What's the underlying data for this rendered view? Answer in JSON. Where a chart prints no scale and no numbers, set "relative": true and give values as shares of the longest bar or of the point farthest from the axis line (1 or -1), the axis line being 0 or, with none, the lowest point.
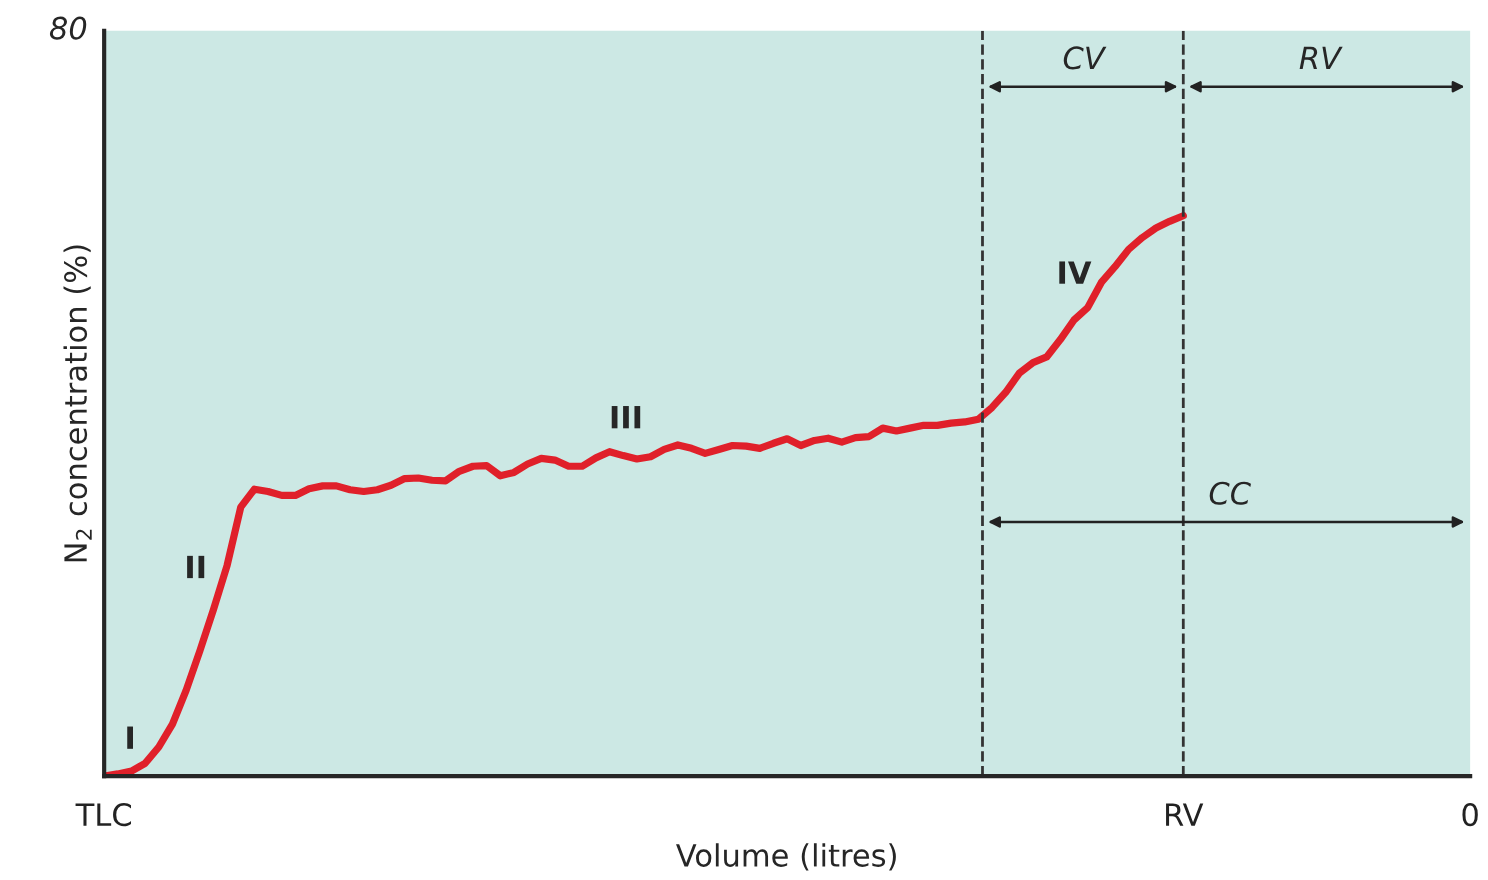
{
  "chart_data": {
    "type": "line",
    "relative": true,
    "xlabel": "Volume (litres)",
    "ylabel": "N$_{2}$ concentration (%)",
    "categories": [
      "TLC",
      null,
      null,
      null,
      null,
      null,
      null,
      null,
      null,
      null,
      null,
      null,
      null,
      null,
      null,
      null,
      null,
      null,
      null,
      null,
      null,
      null,
      null,
      null,
      null,
      null,
      null,
      null,
      null,
      null,
      null,
      null,
      null,
      null,
      null,
      null,
      null,
      null,
      null,
      null,
      null,
      null,
      null,
      null,
      null,
      null,
      null,
      null,
      null,
      null,
      null,
      null,
      null,
      null,
      null,
      null,
      null,
      null,
      null,
      null,
      null,
      null,
      null,
      null,
      null,
      null,
      null,
      null,
      null,
      null,
      null,
      null,
      null,
      null,
      null,
      null,
      null,
      null,
      null,
      "RV",
      null,
      null,
      null,
      null,
      null,
      null,
      null,
      null,
      null,
      null,
      null,
      null,
      null,
      null,
      null,
      null,
      null,
      null,
      null,
      null,
      "0"
    ],
    "grid": false,
    "legend": false,
    "marker": "none",
    "line_style": "solid",
    "series": [
      {
        "color": "#e0202a",
        "values": [
          0,
          0.004,
          0.009,
          0.023,
          0.052,
          0.093,
          0.153,
          0.223,
          0.297,
          0.376,
          0.48,
          0.512,
          0.508,
          0.501,
          0.501,
          0.513,
          0.518,
          0.518,
          0.511,
          0.508,
          0.511,
          0.519,
          0.531,
          0.532,
          0.528,
          0.527,
          0.544,
          0.553,
          0.554,
          0.536,
          0.542,
          0.557,
          0.567,
          0.564,
          0.553,
          0.553,
          0.568,
          0.579,
          0.572,
          0.566,
          0.57,
          0.583,
          0.591,
          0.585,
          0.576,
          0.583,
          0.59,
          0.589,
          0.585,
          0.594,
          0.602,
          0.59,
          0.599,
          0.603,
          0.596,
          0.604,
          0.606,
          0.621,
          0.616,
          0.621,
          0.626,
          0.626,
          0.63,
          0.632,
          0.637,
          0.658,
          0.685,
          0.719,
          0.738,
          0.748,
          0.779,
          0.814,
          0.836,
          0.881,
          0.909,
          0.94,
          0.961,
          0.978,
          0.99,
          1.0,
          null,
          null,
          null,
          null,
          null,
          null,
          null,
          null,
          null,
          null,
          null,
          null,
          null,
          null,
          null,
          null,
          null,
          null,
          null,
          null,
          null
        ]
      }
    ],
    "ref_lines": [
      {
        "axis": "x",
        "value": "RV",
        "label": null,
        "color": "#333333",
        "line_style": "dashed"
      }
    ],
    "annotations": [
      "80",
      "I",
      "II",
      "III",
      "IV",
      "CV",
      "RV",
      "CC"
    ]
  }
}
